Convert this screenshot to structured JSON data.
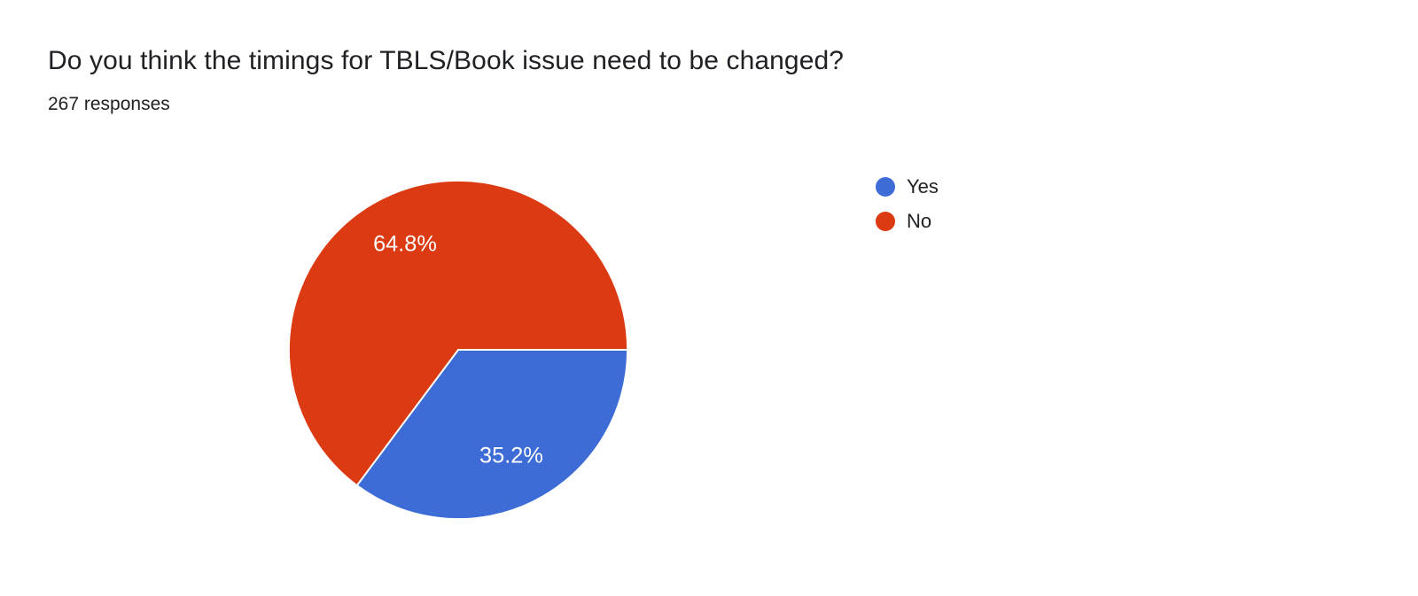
{
  "page": {
    "background_color": "#ffffff"
  },
  "header": {
    "title": "Do you think the timings for TBLS/Book issue need to be changed?",
    "responses": "267 responses"
  },
  "chart_data": {
    "type": "pie",
    "title": "Do you think the timings for TBLS/Book issue need to be changed?",
    "subtitle": "267 responses",
    "labels": [
      "Yes",
      "No"
    ],
    "values": [
      35.2,
      64.8
    ],
    "value_labels": [
      "35.2%",
      "64.8%"
    ],
    "colors": [
      "#3d6cd7",
      "#dc3a12"
    ],
    "total_responses": 267,
    "start_angle_deg_from_east": 0,
    "direction": "clockwise",
    "legend_position": "right",
    "slice_label_color": "#ffffff"
  }
}
